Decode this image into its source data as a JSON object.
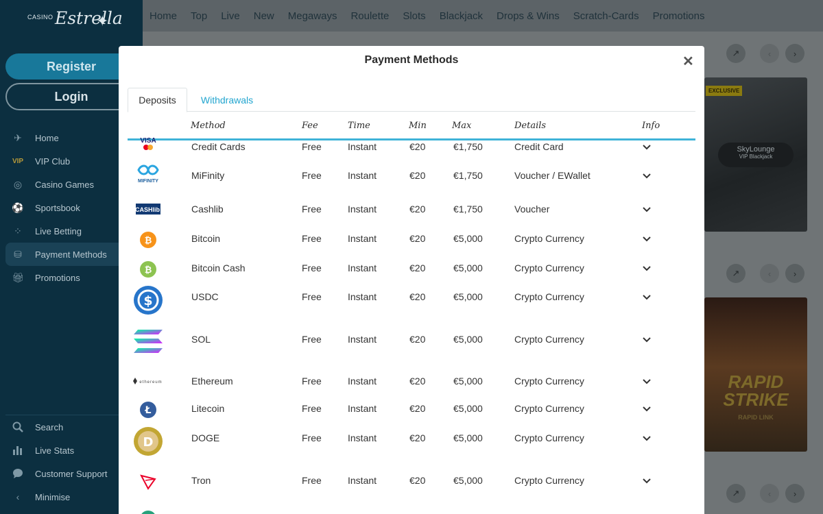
{
  "brand": {
    "small": "CASINO",
    "big": "Estrella"
  },
  "auth": {
    "register": "Register",
    "login": "Login"
  },
  "sidebar": {
    "items": [
      {
        "label": "Home",
        "icon": "star-icon"
      },
      {
        "label": "VIP Club",
        "icon": "vip-icon"
      },
      {
        "label": "Casino Games",
        "icon": "chip-icon"
      },
      {
        "label": "Sportsbook",
        "icon": "football-icon"
      },
      {
        "label": "Live Betting",
        "icon": "live-icon"
      },
      {
        "label": "Payment Methods",
        "icon": "payment-icon"
      },
      {
        "label": "Promotions",
        "icon": "gift-icon"
      }
    ],
    "bottom": [
      {
        "label": "Search",
        "icon": "search-icon"
      },
      {
        "label": "Live Stats",
        "icon": "stats-icon"
      },
      {
        "label": "Customer Support",
        "icon": "chat-icon"
      },
      {
        "label": "Minimise",
        "icon": "chevron-left-icon"
      }
    ]
  },
  "topnav": [
    "Home",
    "Top",
    "Live",
    "New",
    "Megaways",
    "Roulette",
    "Slots",
    "Blackjack",
    "Drops & Wins",
    "Scratch-Cards",
    "Promotions"
  ],
  "background": {
    "badge": "EXCLUSIVE",
    "sky_title": "SkyLounge",
    "sky_sub": "VIP Blackjack",
    "rapid_title": "RAPID STRIKE",
    "rapid_sub": "RAPID LINK"
  },
  "modal": {
    "title": "Payment Methods",
    "close": "✕",
    "tabs": {
      "deposits": "Deposits",
      "withdrawals": "Withdrawals"
    },
    "headers": {
      "method": "Method",
      "fee": "Fee",
      "time": "Time",
      "min": "Min",
      "max": "Max",
      "details": "Details",
      "info": "Info"
    },
    "rows": [
      {
        "logo": "visa-mastercard-logo",
        "logo_text": "VISA",
        "method": "Credit Cards",
        "fee": "Free",
        "time": "Instant",
        "min": "€20",
        "max": "€1,750",
        "details": "Credit Card"
      },
      {
        "logo": "mifinity-logo",
        "logo_text": "MIFINITY",
        "method": "MiFinity",
        "fee": "Free",
        "time": "Instant",
        "min": "€20",
        "max": "€1,750",
        "details": "Voucher / EWallet"
      },
      {
        "logo": "cashlib-logo",
        "logo_text": "CASHlib",
        "method": "Cashlib",
        "fee": "Free",
        "time": "Instant",
        "min": "€20",
        "max": "€1,750",
        "details": "Voucher"
      },
      {
        "logo": "bitcoin-logo",
        "logo_text": "₿",
        "method": "Bitcoin",
        "fee": "Free",
        "time": "Instant",
        "min": "€20",
        "max": "€5,000",
        "details": "Crypto Currency"
      },
      {
        "logo": "bitcoin-cash-logo",
        "logo_text": "₿",
        "method": "Bitcoin Cash",
        "fee": "Free",
        "time": "Instant",
        "min": "€20",
        "max": "€5,000",
        "details": "Crypto Currency"
      },
      {
        "logo": "usdc-logo",
        "logo_text": "$",
        "method": "USDC",
        "fee": "Free",
        "time": "Instant",
        "min": "€20",
        "max": "€5,000",
        "details": "Crypto Currency"
      },
      {
        "logo": "solana-logo",
        "logo_text": "",
        "method": "SOL",
        "fee": "Free",
        "time": "Instant",
        "min": "€20",
        "max": "€5,000",
        "details": "Crypto Currency"
      },
      {
        "logo": "ethereum-logo",
        "logo_text": "ethereum",
        "method": "Ethereum",
        "fee": "Free",
        "time": "Instant",
        "min": "€20",
        "max": "€5,000",
        "details": "Crypto Currency"
      },
      {
        "logo": "litecoin-logo",
        "logo_text": "Ł",
        "method": "Litecoin",
        "fee": "Free",
        "time": "Instant",
        "min": "€20",
        "max": "€5,000",
        "details": "Crypto Currency"
      },
      {
        "logo": "doge-logo",
        "logo_text": "D",
        "method": "DOGE",
        "fee": "Free",
        "time": "Instant",
        "min": "€20",
        "max": "€5,000",
        "details": "Crypto Currency"
      },
      {
        "logo": "tron-logo",
        "logo_text": "",
        "method": "Tron",
        "fee": "Free",
        "time": "Instant",
        "min": "€20",
        "max": "€5,000",
        "details": "Crypto Currency"
      }
    ]
  },
  "colors": {
    "accent": "#3fb3d8",
    "sidebar": "#0c2f40",
    "register": "#18789a"
  }
}
